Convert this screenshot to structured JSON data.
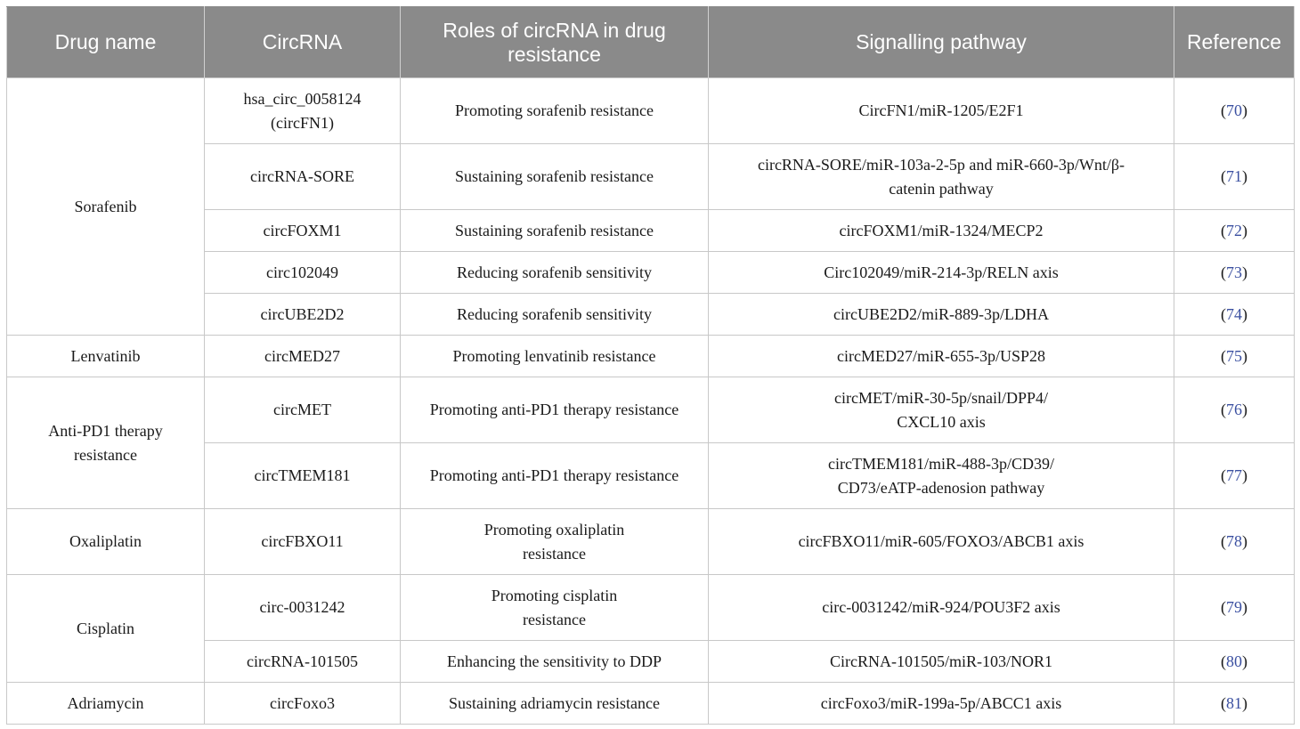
{
  "headers": [
    "Drug name",
    "CircRNA",
    "Roles of circRNA in drug resistance",
    "Signalling pathway",
    "Reference"
  ],
  "groups": [
    {
      "drug": "Sorafenib",
      "rows": [
        {
          "circ": "hsa_circ_0058124 (circFN1)",
          "role": "Promoting sorafenib resistance",
          "pathway": "CircFN1/miR-1205/E2F1",
          "ref": "70"
        },
        {
          "circ": "circRNA-SORE",
          "role": "Sustaining sorafenib resistance",
          "pathway": "circRNA-SORE/miR-103a-2-5p and miR-660-3p/Wnt/β-catenin pathway",
          "ref": "71"
        },
        {
          "circ": "circFOXM1",
          "role": "Sustaining sorafenib resistance",
          "pathway": "circFOXM1/miR-1324/MECP2",
          "ref": "72"
        },
        {
          "circ": "circ102049",
          "role": "Reducing sorafenib sensitivity",
          "pathway": "Circ102049/miR-214-3p/RELN axis",
          "ref": "73"
        },
        {
          "circ": "circUBE2D2",
          "role": "Reducing sorafenib sensitivity",
          "pathway": "circUBE2D2/miR-889-3p/LDHA",
          "ref": "74"
        }
      ]
    },
    {
      "drug": "Lenvatinib",
      "rows": [
        {
          "circ": "circMED27",
          "role": "Promoting lenvatinib resistance",
          "pathway": "circMED27/miR-655-3p/USP28",
          "ref": "75"
        }
      ]
    },
    {
      "drug": "Anti-PD1 therapy resistance",
      "rows": [
        {
          "circ": "circMET",
          "role": "Promoting anti-PD1 therapy resistance",
          "pathway": "circMET/miR-30-5p/snail/DPP4/ CXCL10 axis",
          "ref": "76"
        },
        {
          "circ": "circTMEM181",
          "role": "Promoting anti-PD1 therapy resistance",
          "pathway": "circTMEM181/miR-488-3p/CD39/ CD73/eATP-adenosion pathway",
          "ref": "77"
        }
      ]
    },
    {
      "drug": "Oxaliplatin",
      "rows": [
        {
          "circ": "circFBXO11",
          "role": "Promoting oxaliplatin resistance",
          "pathway": "circFBXO11/miR-605/FOXO3/ABCB1 axis",
          "ref": "78"
        }
      ]
    },
    {
      "drug": "Cisplatin",
      "rows": [
        {
          "circ": "circ-0031242",
          "role": "Promoting cisplatin resistance",
          "pathway": "circ-0031242/miR-924/POU3F2 axis",
          "ref": "79"
        },
        {
          "circ": "circRNA-101505",
          "role": "Enhancing the sensitivity to DDP",
          "pathway": "CircRNA-101505/miR-103/NOR1",
          "ref": "80"
        }
      ]
    },
    {
      "drug": "Adriamycin",
      "rows": [
        {
          "circ": "circFoxo3",
          "role": "Sustaining adriamycin resistance",
          "pathway": "circFoxo3/miR-199a-5p/ABCC1 axis",
          "ref": "81"
        }
      ]
    }
  ],
  "colors": {
    "header_bg": "#8a8a8a",
    "header_text": "#ffffff",
    "ref_link": "#3a4fa0",
    "border": "#c8c8c8"
  }
}
